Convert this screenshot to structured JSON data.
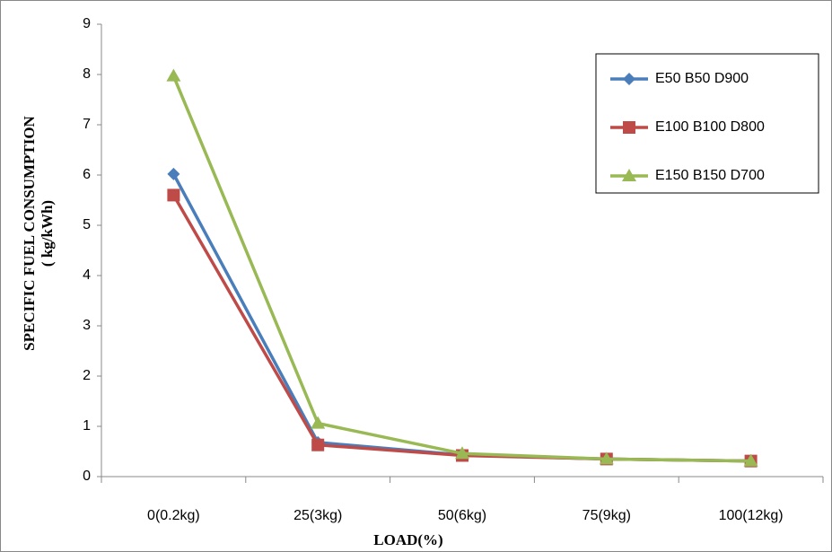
{
  "chart_data": {
    "type": "line",
    "y_label": [
      "SPECIFIC FUEL CONSUMPTION",
      "( kg/kWh)"
    ],
    "x_label": "LOAD(%)",
    "categories": [
      "0(0.2kg)",
      "25(3kg)",
      "50(6kg)",
      "75(9kg)",
      "100(12kg)"
    ],
    "series": [
      {
        "name": "E50 B50 D900",
        "color": "#4a7ebb",
        "marker": "diamond",
        "values": [
          6.02,
          0.68,
          0.43,
          0.35,
          0.31
        ]
      },
      {
        "name": "E100 B100 D800",
        "color": "#be4b48",
        "marker": "square",
        "values": [
          5.6,
          0.63,
          0.42,
          0.35,
          0.31
        ]
      },
      {
        "name": "E150 B150 D700",
        "color": "#98b954",
        "marker": "triangle",
        "values": [
          7.97,
          1.06,
          0.46,
          0.35,
          0.31
        ]
      }
    ],
    "ylim": [
      0,
      9
    ],
    "yticks": [
      0,
      1,
      2,
      3,
      4,
      5,
      6,
      7,
      8,
      9
    ],
    "grid": false,
    "legend": "top-right"
  }
}
